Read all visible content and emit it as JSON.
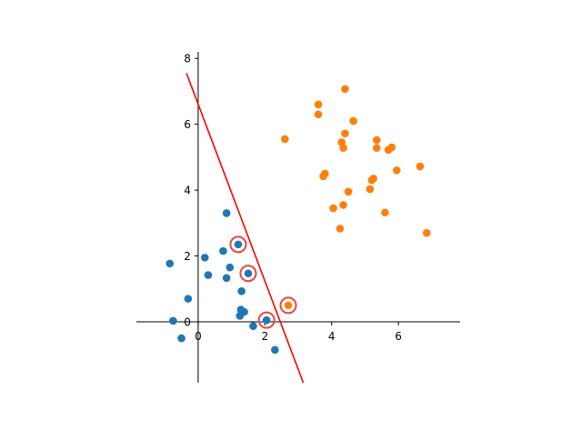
{
  "chart_data": {
    "type": "scatter",
    "title": "",
    "xlabel": "",
    "ylabel": "",
    "xlim": [
      -1.85,
      7.85
    ],
    "ylim": [
      -1.85,
      8.2
    ],
    "xticks": [
      0,
      2,
      4,
      6
    ],
    "yticks": [
      0,
      2,
      4,
      6,
      8
    ],
    "xtick_labels": [
      "0",
      "2",
      "4",
      "6"
    ],
    "ytick_labels": [
      "0",
      "2",
      "4",
      "6",
      "8"
    ],
    "spines": "centered at origin (left and bottom only)",
    "grid": false,
    "legend": "none",
    "series": [
      {
        "color": "#1f77b4",
        "points": [
          [
            -0.85,
            1.77
          ],
          [
            -0.75,
            0.03
          ],
          [
            -0.5,
            -0.5
          ],
          [
            -0.3,
            0.7
          ],
          [
            0.2,
            1.95
          ],
          [
            0.3,
            1.42
          ],
          [
            0.75,
            2.15
          ],
          [
            0.85,
            3.3
          ],
          [
            0.85,
            1.33
          ],
          [
            0.95,
            1.65
          ],
          [
            1.2,
            2.35
          ],
          [
            1.25,
            0.18
          ],
          [
            1.28,
            0.37
          ],
          [
            1.3,
            0.93
          ],
          [
            1.38,
            0.3
          ],
          [
            1.5,
            1.47
          ],
          [
            1.65,
            -0.13
          ],
          [
            2.05,
            0.05
          ],
          [
            2.3,
            -0.85
          ]
        ]
      },
      {
        "color": "#ff7f0e",
        "points": [
          [
            2.6,
            5.55
          ],
          [
            2.7,
            0.5
          ],
          [
            3.6,
            6.6
          ],
          [
            3.6,
            6.3
          ],
          [
            3.75,
            4.42
          ],
          [
            3.8,
            4.5
          ],
          [
            4.05,
            3.45
          ],
          [
            4.25,
            2.83
          ],
          [
            4.3,
            5.45
          ],
          [
            4.35,
            5.28
          ],
          [
            4.35,
            3.55
          ],
          [
            4.4,
            7.07
          ],
          [
            4.4,
            5.72
          ],
          [
            4.5,
            3.95
          ],
          [
            4.65,
            6.1
          ],
          [
            5.15,
            4.03
          ],
          [
            5.2,
            4.3
          ],
          [
            5.25,
            4.35
          ],
          [
            5.35,
            5.52
          ],
          [
            5.35,
            5.28
          ],
          [
            5.6,
            3.32
          ],
          [
            5.7,
            5.22
          ],
          [
            5.8,
            5.3
          ],
          [
            5.95,
            4.6
          ],
          [
            6.65,
            4.72
          ],
          [
            6.85,
            2.7
          ]
        ]
      }
    ],
    "support_vectors": {
      "color": "#e8463c",
      "points": [
        [
          1.2,
          2.35
        ],
        [
          1.5,
          1.47
        ],
        [
          2.05,
          0.05
        ],
        [
          2.7,
          0.5
        ]
      ]
    },
    "decision_line": {
      "color": "#ff0000",
      "points": [
        [
          -0.35,
          7.55
        ],
        [
          3.15,
          -1.85
        ]
      ]
    }
  }
}
